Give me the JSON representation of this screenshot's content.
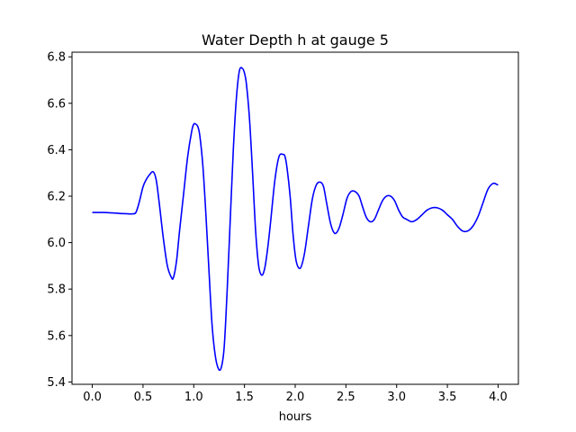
{
  "chart_data": {
    "type": "line",
    "title": "Water Depth h at gauge 5",
    "xlabel": "hours",
    "ylabel": "",
    "xlim": [
      -0.2,
      4.2
    ],
    "ylim": [
      5.39,
      6.82
    ],
    "xticks": [
      "0.0",
      "0.5",
      "1.0",
      "1.5",
      "2.0",
      "2.5",
      "3.0",
      "3.5",
      "4.0"
    ],
    "yticks": [
      "5.4",
      "5.6",
      "5.8",
      "6.0",
      "6.2",
      "6.4",
      "6.6",
      "6.8"
    ],
    "grid": false,
    "series": [
      {
        "color": "#0000ff",
        "x": [
          0.0,
          0.1,
          0.2,
          0.3,
          0.35,
          0.4,
          0.43,
          0.46,
          0.5,
          0.53,
          0.56,
          0.6,
          0.63,
          0.66,
          0.7,
          0.74,
          0.78,
          0.8,
          0.83,
          0.86,
          0.9,
          0.94,
          0.98,
          1.0,
          1.02,
          1.04,
          1.06,
          1.09,
          1.12,
          1.15,
          1.18,
          1.21,
          1.24,
          1.27,
          1.3,
          1.33,
          1.36,
          1.39,
          1.42,
          1.45,
          1.48,
          1.5,
          1.52,
          1.55,
          1.58,
          1.61,
          1.64,
          1.67,
          1.7,
          1.73,
          1.76,
          1.8,
          1.84,
          1.88,
          1.9,
          1.92,
          1.95,
          1.98,
          2.01,
          2.05,
          2.09,
          2.13,
          2.17,
          2.21,
          2.25,
          2.28,
          2.31,
          2.35,
          2.39,
          2.43,
          2.47,
          2.51,
          2.55,
          2.59,
          2.63,
          2.66,
          2.7,
          2.74,
          2.78,
          2.82,
          2.86,
          2.9,
          2.94,
          2.98,
          3.02,
          3.06,
          3.1,
          3.15,
          3.2,
          3.25,
          3.3,
          3.35,
          3.4,
          3.45,
          3.5,
          3.55,
          3.6,
          3.65,
          3.7,
          3.75,
          3.8,
          3.85,
          3.9,
          3.95,
          3.99,
          4.0
        ],
        "values": [
          6.13,
          6.13,
          6.128,
          6.125,
          6.124,
          6.124,
          6.13,
          6.17,
          6.24,
          6.27,
          6.29,
          6.305,
          6.27,
          6.17,
          6.02,
          5.9,
          5.85,
          5.85,
          5.92,
          6.05,
          6.21,
          6.37,
          6.48,
          6.51,
          6.51,
          6.5,
          6.46,
          6.33,
          6.12,
          5.88,
          5.65,
          5.52,
          5.46,
          5.46,
          5.55,
          5.8,
          6.1,
          6.4,
          6.62,
          6.74,
          6.75,
          6.73,
          6.68,
          6.53,
          6.3,
          6.05,
          5.9,
          5.86,
          5.89,
          5.98,
          6.1,
          6.27,
          6.37,
          6.38,
          6.37,
          6.32,
          6.2,
          6.03,
          5.92,
          5.89,
          5.95,
          6.07,
          6.19,
          6.25,
          6.26,
          6.24,
          6.17,
          6.08,
          6.04,
          6.06,
          6.12,
          6.19,
          6.22,
          6.22,
          6.2,
          6.16,
          6.11,
          6.09,
          6.1,
          6.14,
          6.18,
          6.2,
          6.2,
          6.18,
          6.14,
          6.11,
          6.1,
          6.09,
          6.1,
          6.12,
          6.14,
          6.15,
          6.15,
          6.14,
          6.12,
          6.1,
          6.07,
          6.05,
          6.05,
          6.07,
          6.11,
          6.17,
          6.23,
          6.255,
          6.25,
          6.248
        ]
      }
    ]
  }
}
